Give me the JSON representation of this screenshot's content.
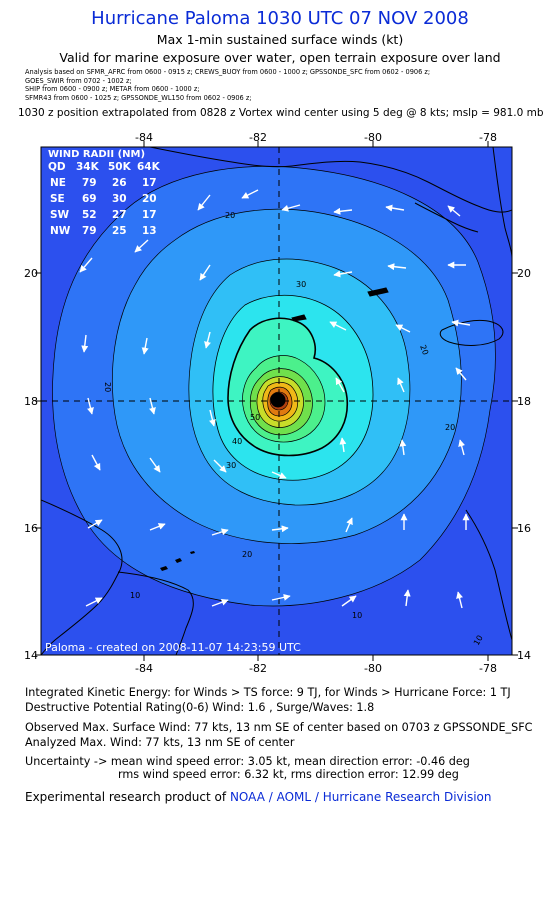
{
  "header": {
    "title": "Hurricane Paloma 1030 UTC 07 NOV 2008",
    "subtitle1": "Max 1-min sustained surface winds (kt)",
    "subtitle2": "Valid for marine exposure over water, open terrain exposure over land",
    "analysis_lines": [
      "Analysis based on  SFMR_AFRC from 0600 - 0915 z;  CREWS_BUOY from 0600 - 1000 z;  GPSSONDE_SFC from 0602 - 0906 z;",
      "GOES_SWIR from 0702 - 1002 z;",
      "SHIP from 0600 - 0900 z;   METAR from 0600 - 1000 z;",
      "SFMR43 from 0600 - 1025 z;  GPSSONDE_WL150 from 0602 - 0906 z;"
    ],
    "position_note": "1030 z position extrapolated from 0828 z Vortex wind center using 5 deg @ 8 kts; mslp = 981.0 mb"
  },
  "map": {
    "x_ticks": [
      "-84",
      "-82",
      "-80",
      "-78"
    ],
    "y_ticks": [
      "20",
      "18",
      "16",
      "14"
    ],
    "contour_labels": [
      "20",
      "30",
      "20",
      "20",
      "20",
      "30",
      "40",
      "50",
      "20",
      "10",
      "10",
      "10"
    ],
    "credit": "Paloma - created on 2008-11-07  14:23:59 UTC",
    "wind_radii": {
      "title": "WIND RADII (NM)",
      "headers": [
        "QD",
        "34K",
        "50K",
        "64K"
      ],
      "rows": [
        [
          "NE",
          "79",
          "26",
          "17"
        ],
        [
          "SE",
          "69",
          "30",
          "20"
        ],
        [
          "SW",
          "52",
          "27",
          "17"
        ],
        [
          "NW",
          "79",
          "25",
          "13"
        ]
      ]
    },
    "colors": {
      "outer": "#2c50ee",
      "level1": "#2e74f6",
      "level2": "#2f98f8",
      "level3": "#30bff6",
      "level4": "#2ce4ee",
      "level5": "#3ef4c2",
      "level6": "#4cf08c",
      "level7": "#70e04c",
      "level8": "#c8dc2a",
      "level9": "#f0b818",
      "level10": "#e07a10",
      "level11": "#b04010"
    }
  },
  "footer": {
    "ike": "Integrated Kinetic Energy:  for Winds > TS force: 9 TJ,  for Winds > Hurricane Force: 1 TJ",
    "dpr": "Destructive Potential Rating(0-6)   Wind: 1.6 , Surge/Waves: 1.8",
    "observed": "Observed Max. Surface Wind: 77 kts, 13 nm SE of center based on 0703 z GPSSONDE_SFC",
    "analyzed": "Analyzed Max. Wind: 77 kts, 13 nm SE of center",
    "uncertainty1": "Uncertainty -> mean wind speed error: 3.05 kt,   mean direction error:  -0.46 deg",
    "uncertainty2": "rms wind speed error: 6.32 kt,   rms direction error: 12.99 deg",
    "product_prefix": "Experimental research product of",
    "product_org": "NOAA / AOML / Hurricane Research Division"
  }
}
